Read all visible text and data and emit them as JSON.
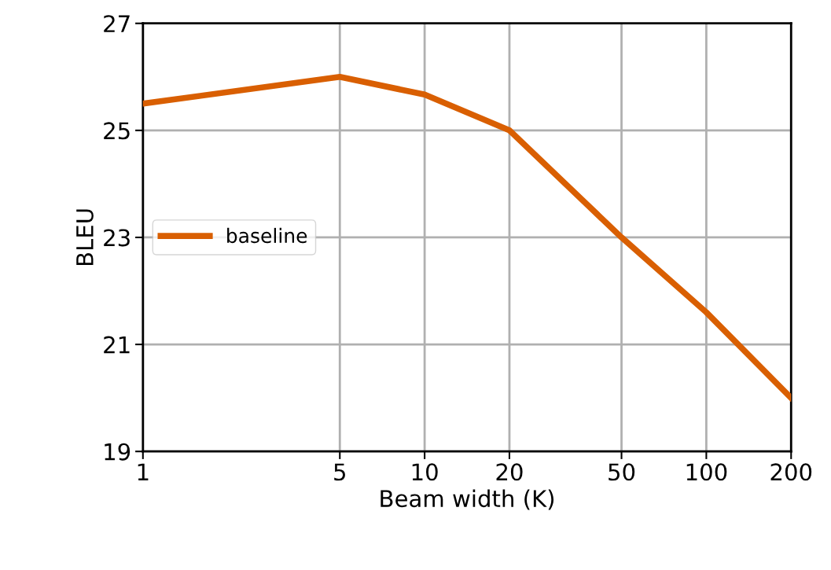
{
  "chart_data": {
    "type": "line",
    "xlabel": "Beam width (K)",
    "ylabel": "BLEU",
    "log": "x",
    "x": [
      1,
      5,
      10,
      20,
      50,
      100,
      200
    ],
    "series": [
      {
        "name": "baseline",
        "color": "#d95f02",
        "values": [
          25.5,
          26.0,
          25.67,
          25.0,
          23.0,
          21.6,
          20.0
        ]
      }
    ],
    "xlim": [
      1,
      200
    ],
    "xticks": [
      1,
      5,
      10,
      20,
      50,
      100,
      200
    ],
    "ylim": [
      19,
      27
    ],
    "yticks": [
      19,
      21,
      23,
      25,
      27
    ],
    "grid": true,
    "legend": "center left",
    "marker": "none",
    "line_style": "solid"
  }
}
